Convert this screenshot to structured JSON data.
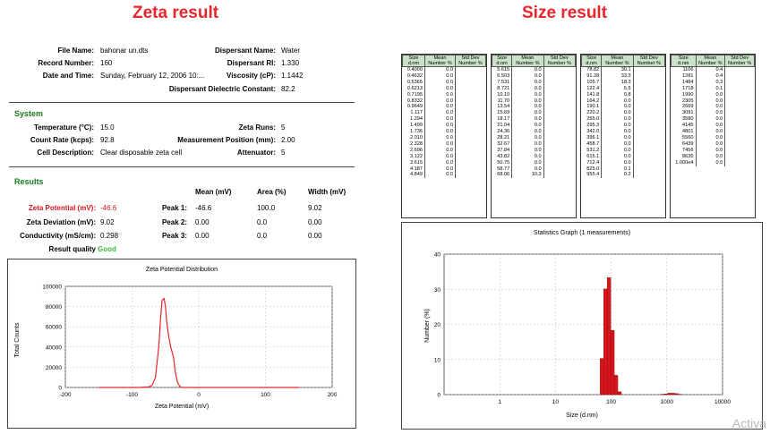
{
  "headings": {
    "zeta": "Zeta result",
    "size": "Size result"
  },
  "record": {
    "file_name_label": "File Name:",
    "file_name": "bahonar un.dts",
    "record_number_label": "Record Number:",
    "record_number": "160",
    "date_time_label": "Date and Time:",
    "date_time": "Sunday, February 12, 2006 10:...",
    "dispersant_name_label": "Dispersant Name:",
    "dispersant_name": "Water",
    "dispersant_ri_label": "Dispersant RI:",
    "dispersant_ri": "1.330",
    "viscosity_label": "Viscosity (cP):",
    "viscosity": "1.1442",
    "dielectric_label": "Dispersant Dielectric Constant:",
    "dielectric": "82.2"
  },
  "system": {
    "title": "System",
    "temperature_label": "Temperature (°C):",
    "temperature": "15.0",
    "zeta_runs_label": "Zeta Runs:",
    "zeta_runs": "5",
    "count_rate_label": "Count Rate (kcps):",
    "count_rate": "92.8",
    "meas_pos_label": "Measurement Position (mm):",
    "meas_pos": "2.00",
    "cell_label": "Cell Description:",
    "cell": "Clear disposable zeta cell",
    "attenuator_label": "Attenuator:",
    "attenuator": "5"
  },
  "results": {
    "title": "Results",
    "col_mean": "Mean (mV)",
    "col_area": "Area (%)",
    "col_width": "Width (mV)",
    "zp_label": "Zeta Potential (mV):",
    "zp": "-46.6",
    "zd_label": "Zeta Deviation (mV):",
    "zd": "9.02",
    "cond_label": "Conductivity (mS/cm):",
    "cond": "0.298",
    "quality_label": "Result quality",
    "quality": "Good",
    "peak1_label": "Peak 1:",
    "peak1": [
      "-46.6",
      "100.0",
      "9.02"
    ],
    "peak2_label": "Peak 2:",
    "peak2": [
      "0.00",
      "0.0",
      "0.00"
    ],
    "peak3_label": "Peak 3:",
    "peak3": [
      "0.00",
      "0.0",
      "0.00"
    ]
  },
  "size_table": {
    "headers": [
      "Size\nd.nm",
      "Mean\nNumber %",
      "Std Dev\nNumber %"
    ],
    "blocks": [
      [
        [
          "0.4000",
          "0.0"
        ],
        [
          "0.4632",
          "0.0"
        ],
        [
          "0.5365",
          "0.0"
        ],
        [
          "0.6213",
          "0.0"
        ],
        [
          "0.7195",
          "0.0"
        ],
        [
          "0.8332",
          "0.0"
        ],
        [
          "0.9649",
          "0.0"
        ],
        [
          "1.117",
          "0.0"
        ],
        [
          "1.294",
          "0.0"
        ],
        [
          "1.499",
          "0.0"
        ],
        [
          "1.736",
          "0.0"
        ],
        [
          "2.010",
          "0.0"
        ],
        [
          "2.328",
          "0.0"
        ],
        [
          "2.696",
          "0.0"
        ],
        [
          "3.122",
          "0.0"
        ],
        [
          "3.615",
          "0.0"
        ],
        [
          "4.187",
          "0.0"
        ],
        [
          "4.849",
          "0.0"
        ]
      ],
      [
        [
          "5.615",
          "0.0"
        ],
        [
          "6.503",
          "0.0"
        ],
        [
          "7.531",
          "0.0"
        ],
        [
          "8.721",
          "0.0"
        ],
        [
          "10.10",
          "0.0"
        ],
        [
          "11.70",
          "0.0"
        ],
        [
          "13.54",
          "0.0"
        ],
        [
          "15.69",
          "0.0"
        ],
        [
          "18.17",
          "0.0"
        ],
        [
          "21.04",
          "0.0"
        ],
        [
          "24.36",
          "0.0"
        ],
        [
          "28.21",
          "0.0"
        ],
        [
          "32.67",
          "0.0"
        ],
        [
          "37.84",
          "0.0"
        ],
        [
          "43.82",
          "0.0"
        ],
        [
          "50.75",
          "0.0"
        ],
        [
          "58.77",
          "0.0"
        ],
        [
          "68.06",
          "10.3"
        ]
      ],
      [
        [
          "78.82",
          "30.1"
        ],
        [
          "91.28",
          "33.3"
        ],
        [
          "105.7",
          "18.3"
        ],
        [
          "122.4",
          "5.5"
        ],
        [
          "141.8",
          "0.8"
        ],
        [
          "164.2",
          "0.0"
        ],
        [
          "190.1",
          "0.0"
        ],
        [
          "220.2",
          "0.0"
        ],
        [
          "255.0",
          "0.0"
        ],
        [
          "295.3",
          "0.0"
        ],
        [
          "342.0",
          "0.0"
        ],
        [
          "396.1",
          "0.0"
        ],
        [
          "458.7",
          "0.0"
        ],
        [
          "531.2",
          "0.0"
        ],
        [
          "615.1",
          "0.0"
        ],
        [
          "712.4",
          "0.0"
        ],
        [
          "825.0",
          "0.1"
        ],
        [
          "955.4",
          "0.2"
        ]
      ],
      [
        [
          "1106",
          "0.4"
        ],
        [
          "1281",
          "0.4"
        ],
        [
          "1484",
          "0.3"
        ],
        [
          "1718",
          "0.1"
        ],
        [
          "1990",
          "0.0"
        ],
        [
          "2305",
          "0.0"
        ],
        [
          "2669",
          "0.0"
        ],
        [
          "3091",
          "0.0"
        ],
        [
          "3580",
          "0.0"
        ],
        [
          "4145",
          "0.0"
        ],
        [
          "4801",
          "0.0"
        ],
        [
          "5560",
          "0.0"
        ],
        [
          "6439",
          "0.0"
        ],
        [
          "7456",
          "0.0"
        ],
        [
          "8635",
          "0.0"
        ],
        [
          "1.000e4",
          "0.0"
        ]
      ]
    ]
  },
  "chart_data": [
    {
      "type": "line",
      "title": "Zeta Potential Distribution",
      "xlabel": "Zeta Potential (mV)",
      "ylabel": "Total Counts",
      "xlim": [
        -200,
        200
      ],
      "ylim": [
        0,
        100000
      ],
      "xticks": [
        "-200",
        "-100",
        "0",
        "100",
        "200"
      ],
      "yticks": [
        "0",
        "20000",
        "40000",
        "60000",
        "80000",
        "100000"
      ],
      "grid": true,
      "color": "#e8262c",
      "x": [
        -150,
        -90,
        -75,
        -70,
        -65,
        -60,
        -57,
        -55,
        -52,
        -50,
        -48,
        -45,
        -42,
        -38,
        -35,
        -32,
        -28,
        -25,
        150
      ],
      "y": [
        0,
        0,
        500,
        2000,
        10000,
        40000,
        70000,
        86000,
        88000,
        80000,
        65000,
        50000,
        40000,
        30000,
        15000,
        5000,
        1000,
        0,
        0
      ]
    },
    {
      "type": "bar",
      "title": "Statistics Graph (1 measurements)",
      "xlabel": "Size (d.nm)",
      "ylabel": "Number (%)",
      "xscale": "log",
      "xlim": [
        0.1,
        10000
      ],
      "ylim": [
        0,
        40
      ],
      "xticks": [
        "1",
        "10",
        "100",
        "1000",
        "10000"
      ],
      "yticks": [
        "0",
        "10",
        "20",
        "30",
        "40"
      ],
      "grid": true,
      "color": "#d8161b",
      "x": [
        68.06,
        78.82,
        91.28,
        105.7,
        122.4,
        141.8,
        825.0,
        955.4,
        1106,
        1281,
        1484,
        1718
      ],
      "y": [
        10.3,
        30.1,
        33.3,
        18.3,
        5.5,
        0.8,
        0.1,
        0.2,
        0.4,
        0.4,
        0.3,
        0.1
      ]
    }
  ],
  "watermark": "Activa"
}
